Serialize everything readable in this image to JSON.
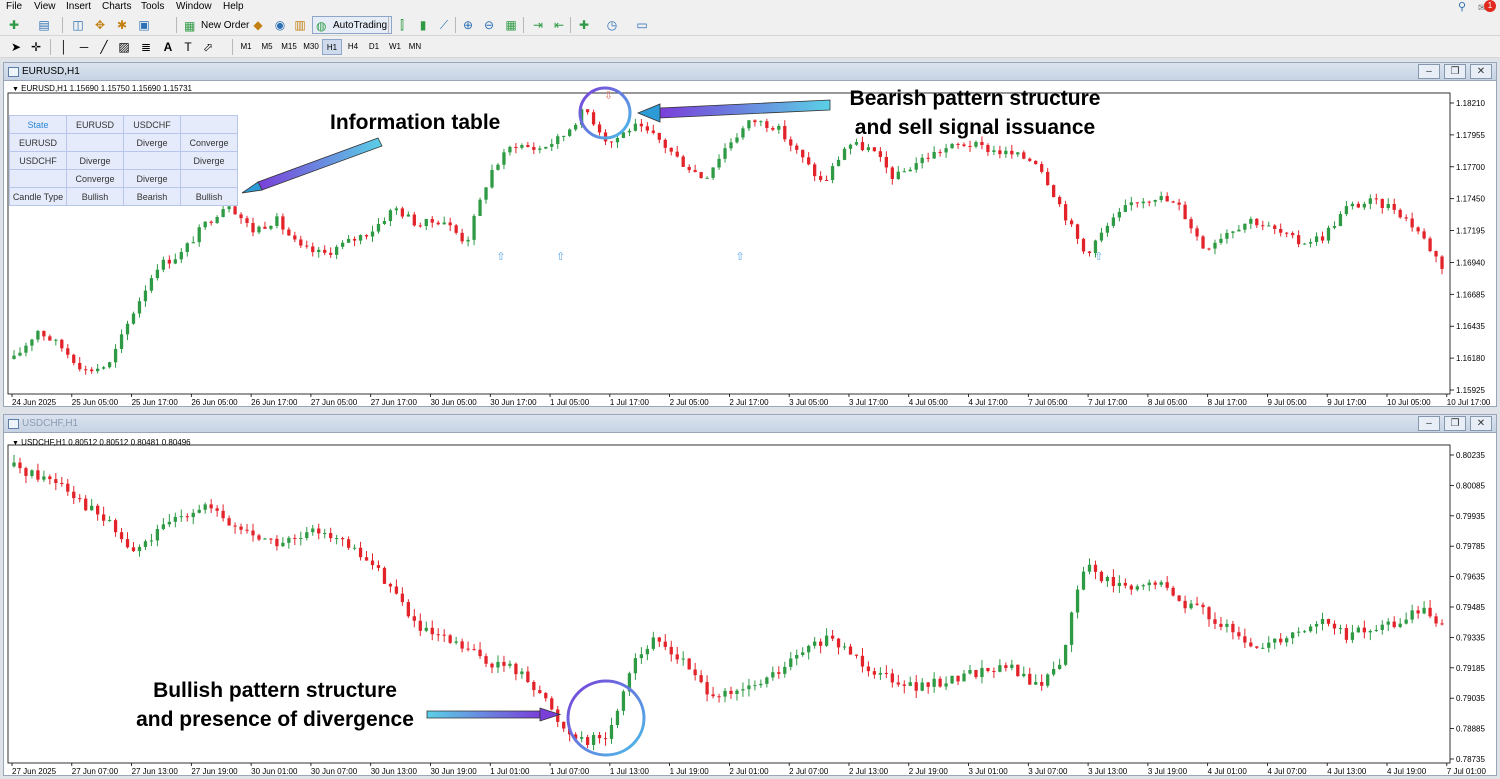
{
  "menu": [
    "File",
    "View",
    "Insert",
    "Charts",
    "Tools",
    "Window",
    "Help"
  ],
  "notification_count": "1",
  "toolbar": {
    "new_order_label": "New Order",
    "autotrading_label": "AutoTrading",
    "timeframes": [
      "M1",
      "M5",
      "M15",
      "M30",
      "H1",
      "H4",
      "D1",
      "W1",
      "MN"
    ],
    "active_timeframe": "H1"
  },
  "charts": [
    {
      "window_title": "EURUSD,H1",
      "info_line": "EURUSD,H1  1.15690 1.15750 1.15690 1.15731",
      "price_labels": [
        "1.18210",
        "1.17955",
        "1.17700",
        "1.17450",
        "1.17195",
        "1.16940",
        "1.16685",
        "1.16435",
        "1.16180",
        "1.15925"
      ],
      "time_labels": [
        "24 Jun 2025",
        "25 Jun 05:00",
        "25 Jun 17:00",
        "26 Jun 05:00",
        "26 Jun 17:00",
        "27 Jun 05:00",
        "27 Jun 17:00",
        "30 Jun 05:00",
        "30 Jun 17:00",
        "1 Jul 05:00",
        "1 Jul 17:00",
        "2 Jul 05:00",
        "2 Jul 17:00",
        "3 Jul 05:00",
        "3 Jul 17:00",
        "4 Jul 05:00",
        "4 Jul 17:00",
        "7 Jul 05:00",
        "7 Jul 17:00",
        "8 Jul 05:00",
        "8 Jul 17:00",
        "9 Jul 05:00",
        "9 Jul 17:00",
        "10 Jul 05:00",
        "10 Jul 17:00"
      ]
    },
    {
      "window_title": "USDCHF,H1",
      "info_line": "USDCHF,H1  0.80512 0.80512 0.80481 0.80496",
      "price_labels": [
        "0.80235",
        "0.80085",
        "0.79935",
        "0.79785",
        "0.79635",
        "0.79485",
        "0.79335",
        "0.79185",
        "0.79035",
        "0.78885",
        "0.78735"
      ],
      "time_labels": [
        "27 Jun 2025",
        "27 Jun 07:00",
        "27 Jun 13:00",
        "27 Jun 19:00",
        "30 Jun 01:00",
        "30 Jun 07:00",
        "30 Jun 13:00",
        "30 Jun 19:00",
        "1 Jul 01:00",
        "1 Jul 07:00",
        "1 Jul 13:00",
        "1 Jul 19:00",
        "2 Jul 01:00",
        "2 Jul 07:00",
        "2 Jul 13:00",
        "2 Jul 19:00",
        "3 Jul 01:00",
        "3 Jul 07:00",
        "3 Jul 13:00",
        "3 Jul 19:00",
        "4 Jul 01:00",
        "4 Jul 07:00",
        "4 Jul 13:00",
        "4 Jul 19:00",
        "7 Jul 01:00"
      ]
    }
  ],
  "info_table": [
    [
      "State",
      "EURUSD",
      "USDCHF",
      ""
    ],
    [
      "EURUSD",
      "",
      "Diverge",
      "Converge"
    ],
    [
      "USDCHF",
      "Diverge",
      "",
      "Diverge"
    ],
    [
      "",
      "Converge",
      "Diverge",
      ""
    ],
    [
      "Candle Type",
      "Bullish",
      "Bearish",
      "Bullish"
    ]
  ],
  "annotations": {
    "info_table": "Information table",
    "bearish_line1": "Bearish pattern structure",
    "bearish_line2": "and sell signal issuance",
    "bullish_line1": "Bullish pattern structure",
    "bullish_line2": "and presence of divergence"
  },
  "colors": {
    "bull": "#2e9a44",
    "bear": "#e3232a",
    "signal_up": "#5aa7e6",
    "signal_down": "#e07a6a",
    "circle": "#7b6fd8"
  },
  "chart_data": [
    {
      "type": "candlestick",
      "symbol": "EURUSD",
      "timeframe": "H1",
      "ylim": [
        1.158,
        1.1835
      ],
      "close_path": [
        1.161,
        1.1635,
        1.162,
        1.16,
        1.1605,
        1.165,
        1.169,
        1.17,
        1.1725,
        1.1745,
        1.172,
        1.173,
        1.1705,
        1.17,
        1.171,
        1.172,
        1.174,
        1.1725,
        1.173,
        1.171,
        1.177,
        1.1795,
        1.179,
        1.18,
        1.1825,
        1.1795,
        1.181,
        1.18,
        1.178,
        1.1765,
        1.1795,
        1.1815,
        1.181,
        1.1785,
        1.176,
        1.1795,
        1.179,
        1.1765,
        1.178,
        1.179,
        1.1795,
        1.179,
        1.1785,
        1.178,
        1.174,
        1.17,
        1.1725,
        1.1745,
        1.175,
        1.174,
        1.1705,
        1.172,
        1.173,
        1.172,
        1.171,
        1.1715,
        1.174,
        1.1745,
        1.174,
        1.172,
        1.169
      ],
      "signals": [
        {
          "x": "30 Jun 17:00",
          "dir": "up"
        },
        {
          "x": "1 Jul 05:00",
          "dir": "up"
        },
        {
          "x": "1 Jul 09:00",
          "dir": "down"
        },
        {
          "x": "2 Jul 17:00",
          "dir": "up"
        },
        {
          "x": "7 Jul 17:00",
          "dir": "up"
        }
      ]
    },
    {
      "type": "candlestick",
      "symbol": "USDCHF",
      "timeframe": "H1",
      "ylim": [
        0.7866,
        0.8029
      ],
      "close_path": [
        0.802,
        0.8015,
        0.8012,
        0.8,
        0.799,
        0.7975,
        0.7985,
        0.7995,
        0.8,
        0.799,
        0.7985,
        0.798,
        0.7982,
        0.7988,
        0.7978,
        0.797,
        0.7955,
        0.7935,
        0.793,
        0.7925,
        0.7918,
        0.7915,
        0.7905,
        0.7885,
        0.7878,
        0.788,
        0.792,
        0.793,
        0.792,
        0.7905,
        0.79,
        0.7905,
        0.7912,
        0.7922,
        0.793,
        0.7925,
        0.7915,
        0.791,
        0.7905,
        0.7908,
        0.7912,
        0.7915,
        0.7915,
        0.7905,
        0.792,
        0.797,
        0.796,
        0.7955,
        0.796,
        0.795,
        0.7945,
        0.7935,
        0.7925,
        0.793,
        0.7935,
        0.794,
        0.7932,
        0.7935,
        0.7938,
        0.7945,
        0.794
      ],
      "signals": []
    }
  ]
}
